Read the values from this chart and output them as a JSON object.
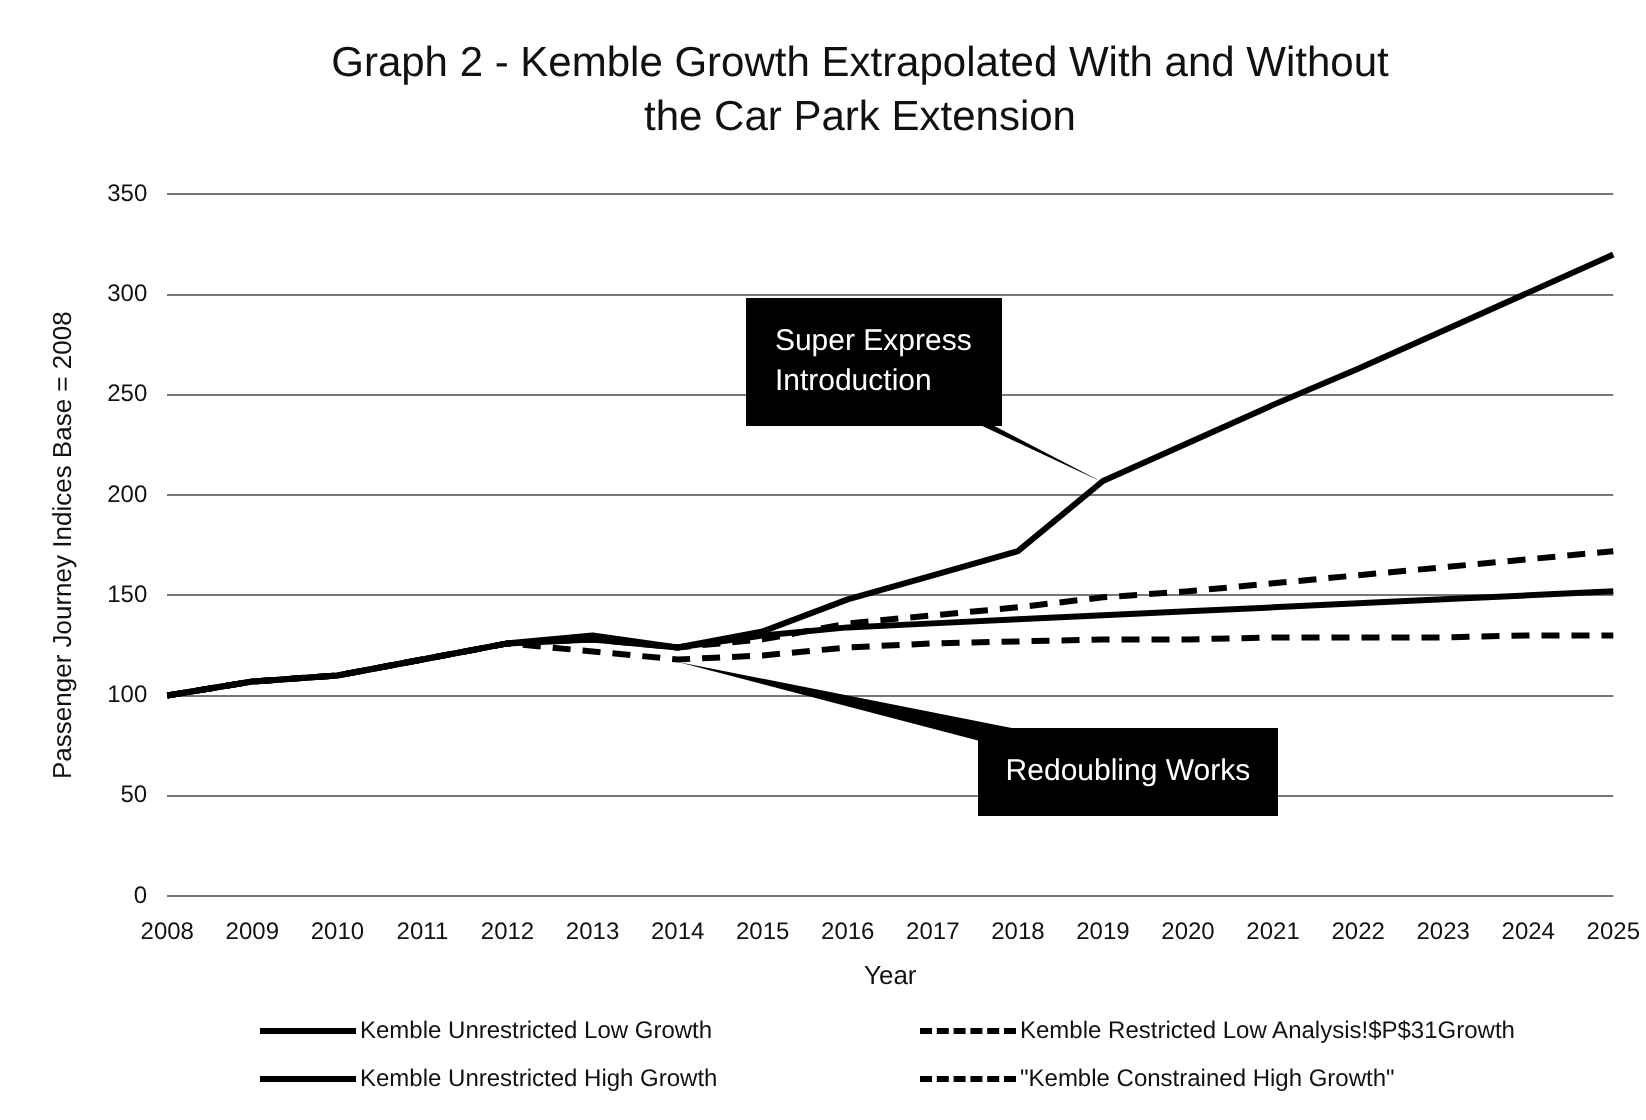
{
  "chart_data": {
    "type": "line",
    "title": "Graph 2 - Kemble Growth Extrapolated With and Without the Car Park Extension",
    "xlabel": "Year",
    "ylabel": "Passenger Journey Indices Base = 2008",
    "categories": [
      "2008",
      "2009",
      "2010",
      "2011",
      "2012",
      "2013",
      "2014",
      "2015",
      "2016",
      "2017",
      "2018",
      "2019",
      "2020",
      "2021",
      "2022",
      "2023",
      "2024",
      "2025"
    ],
    "series": [
      {
        "name": "Kemble Unrestricted Low Growth",
        "color": "#000000",
        "line_style": "solid",
        "values": [
          100,
          107,
          110,
          118,
          126,
          128,
          124,
          130,
          134,
          136,
          138,
          140,
          142,
          144,
          146,
          148,
          150,
          152
        ]
      },
      {
        "name": "Kemble Restricted Low Analysis!$P$31Growth",
        "color": "#000000",
        "line_style": "dashed",
        "values": [
          100,
          107,
          110,
          118,
          126,
          122,
          118,
          120,
          124,
          126,
          127,
          128,
          128,
          129,
          129,
          129,
          130,
          130
        ]
      },
      {
        "name": "Kemble Unrestricted High Growth",
        "color": "#000000",
        "line_style": "solid",
        "values": [
          100,
          107,
          110,
          118,
          126,
          130,
          124,
          132,
          148,
          160,
          172,
          207,
          226,
          245,
          263,
          282,
          301,
          320
        ]
      },
      {
        "name": "\"Kemble Constrained High Growth\"",
        "color": "#000000",
        "line_style": "dashed",
        "values": [
          100,
          107,
          110,
          118,
          126,
          128,
          124,
          128,
          136,
          140,
          144,
          149,
          152,
          156,
          160,
          164,
          168,
          172
        ]
      }
    ],
    "ylim": [
      0,
      350
    ],
    "yticks": [
      0,
      50,
      100,
      150,
      200,
      250,
      300,
      350
    ],
    "grid": "y",
    "legend": "bottom",
    "marker": "none",
    "annotations": [
      {
        "text": "Super Express Introduction",
        "x": "2019",
        "y": 207
      },
      {
        "text": "Redoubling Works",
        "x": "2014",
        "y": 117
      }
    ]
  }
}
